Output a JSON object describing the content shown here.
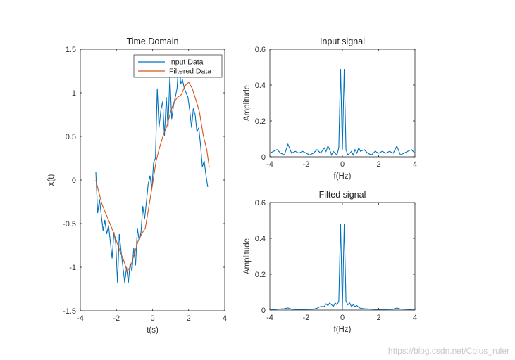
{
  "watermark": "https://blog.csdn.net/Cplus_ruler",
  "colors": {
    "series1": "#0072BD",
    "series2": "#D95319",
    "axis": "#262626"
  },
  "chart_data": [
    {
      "type": "line",
      "title": "Time Domain",
      "xlabel": "t(s)",
      "ylabel": "x(t)",
      "xlim": [
        -4,
        4
      ],
      "ylim": [
        -1.5,
        1.5
      ],
      "xticks": [
        -4,
        -2,
        0,
        2,
        4
      ],
      "yticks": [
        -1.5,
        -1,
        -0.5,
        0,
        0.5,
        1,
        1.5
      ],
      "grid": false,
      "legend": "top-right",
      "series": [
        {
          "name": "Input Data",
          "x": [
            -3.14,
            -3.04,
            -2.94,
            -2.84,
            -2.74,
            -2.64,
            -2.54,
            -2.44,
            -2.34,
            -2.24,
            -2.14,
            -2.04,
            -1.94,
            -1.84,
            -1.74,
            -1.64,
            -1.54,
            -1.44,
            -1.34,
            -1.24,
            -1.14,
            -1.04,
            -0.94,
            -0.84,
            -0.74,
            -0.64,
            -0.54,
            -0.44,
            -0.34,
            -0.24,
            -0.14,
            -0.04,
            0.06,
            0.16,
            0.26,
            0.36,
            0.46,
            0.56,
            0.66,
            0.76,
            0.86,
            0.96,
            1.06,
            1.16,
            1.26,
            1.36,
            1.46,
            1.56,
            1.66,
            1.76,
            1.86,
            1.96,
            2.06,
            2.16,
            2.26,
            2.36,
            2.46,
            2.56,
            2.66,
            2.76,
            2.86,
            2.96,
            3.06
          ],
          "y": [
            0.09,
            -0.38,
            -0.22,
            -0.4,
            -0.58,
            -0.46,
            -0.62,
            -0.52,
            -0.7,
            -0.9,
            -0.6,
            -0.72,
            -1.18,
            -0.62,
            -0.82,
            -1.0,
            -1.18,
            -1.0,
            -1.18,
            -0.95,
            -1.05,
            -0.78,
            -0.98,
            -0.55,
            -0.7,
            -0.6,
            -0.3,
            -0.45,
            -0.25,
            -0.05,
            0.05,
            -0.1,
            0.2,
            0.25,
            1.05,
            0.6,
            0.8,
            0.9,
            0.5,
            0.95,
            0.6,
            1.2,
            0.7,
            0.85,
            0.95,
            1.05,
            1.4,
            1.1,
            1.15,
            1.05,
            1.0,
            0.95,
            0.8,
            0.6,
            0.82,
            0.75,
            0.55,
            0.6,
            0.4,
            0.15,
            0.22,
            0.05,
            -0.08
          ]
        },
        {
          "name": "Filtered Data",
          "x": [
            -3.14,
            -3.0,
            -2.8,
            -2.6,
            -2.4,
            -2.2,
            -2.0,
            -1.8,
            -1.6,
            -1.4,
            -1.2,
            -1.0,
            -0.8,
            -0.6,
            -0.4,
            -0.2,
            0.0,
            0.2,
            0.4,
            0.6,
            0.8,
            1.0,
            1.2,
            1.4,
            1.6,
            1.8,
            2.0,
            2.2,
            2.4,
            2.6,
            2.8,
            3.0,
            3.14
          ],
          "y": [
            0.0,
            -0.12,
            -0.28,
            -0.38,
            -0.48,
            -0.58,
            -0.7,
            -0.82,
            -0.92,
            -1.05,
            -0.98,
            -0.84,
            -0.7,
            -0.62,
            -0.55,
            -0.3,
            -0.05,
            0.22,
            0.38,
            0.52,
            0.62,
            0.78,
            0.9,
            0.95,
            0.98,
            1.08,
            1.12,
            1.05,
            0.92,
            0.78,
            0.52,
            0.35,
            0.15
          ]
        }
      ]
    },
    {
      "type": "line",
      "title": "Input signal",
      "xlabel": "f(Hz)",
      "ylabel": "Amplitude",
      "xlim": [
        -4,
        4
      ],
      "ylim": [
        0,
        0.6
      ],
      "xticks": [
        -4,
        -2,
        0,
        2,
        4
      ],
      "yticks": [
        0,
        0.2,
        0.4,
        0.6
      ],
      "grid": false,
      "series": [
        {
          "x": [
            -4.0,
            -3.8,
            -3.6,
            -3.4,
            -3.2,
            -3.0,
            -2.8,
            -2.6,
            -2.4,
            -2.2,
            -2.0,
            -1.8,
            -1.6,
            -1.4,
            -1.2,
            -1.0,
            -0.9,
            -0.8,
            -0.7,
            -0.6,
            -0.5,
            -0.4,
            -0.3,
            -0.2,
            -0.1,
            0.0,
            0.1,
            0.2,
            0.3,
            0.4,
            0.5,
            0.6,
            0.7,
            0.8,
            0.9,
            1.0,
            1.2,
            1.4,
            1.6,
            1.8,
            2.0,
            2.2,
            2.4,
            2.6,
            2.8,
            3.0,
            3.2,
            3.4,
            3.6,
            3.8,
            4.0
          ],
          "y": [
            0.02,
            0.03,
            0.04,
            0.02,
            0.01,
            0.07,
            0.02,
            0.03,
            0.02,
            0.03,
            0.02,
            0.01,
            0.02,
            0.04,
            0.02,
            0.05,
            0.03,
            0.06,
            0.04,
            0.01,
            0.03,
            0.02,
            0.01,
            0.05,
            0.49,
            0.04,
            0.49,
            0.04,
            0.01,
            0.02,
            0.03,
            0.01,
            0.04,
            0.02,
            0.05,
            0.03,
            0.04,
            0.02,
            0.01,
            0.03,
            0.02,
            0.03,
            0.02,
            0.03,
            0.02,
            0.06,
            0.01,
            0.02,
            0.03,
            0.04,
            0.02
          ]
        }
      ]
    },
    {
      "type": "line",
      "title": "Filted signal",
      "xlabel": "f(Hz)",
      "ylabel": "Amplitude",
      "xlim": [
        -4,
        4
      ],
      "ylim": [
        0,
        0.6
      ],
      "xticks": [
        -4,
        -2,
        0,
        2,
        4
      ],
      "yticks": [
        0,
        0.2,
        0.4,
        0.6
      ],
      "grid": false,
      "series": [
        {
          "x": [
            -4.0,
            -3.6,
            -3.2,
            -3.0,
            -2.8,
            -2.4,
            -2.0,
            -1.6,
            -1.4,
            -1.2,
            -1.0,
            -0.9,
            -0.8,
            -0.7,
            -0.6,
            -0.5,
            -0.4,
            -0.3,
            -0.2,
            -0.1,
            0.0,
            0.1,
            0.2,
            0.3,
            0.4,
            0.5,
            0.6,
            0.7,
            0.8,
            0.9,
            1.0,
            1.2,
            1.6,
            2.0,
            2.4,
            2.8,
            3.0,
            3.2,
            3.6,
            4.0
          ],
          "y": [
            0.0,
            0.005,
            0.008,
            0.012,
            0.005,
            0.003,
            0.004,
            0.005,
            0.01,
            0.02,
            0.02,
            0.035,
            0.025,
            0.04,
            0.03,
            0.02,
            0.04,
            0.03,
            0.05,
            0.48,
            0.01,
            0.48,
            0.05,
            0.03,
            0.04,
            0.02,
            0.03,
            0.02,
            0.025,
            0.015,
            0.01,
            0.008,
            0.005,
            0.003,
            0.004,
            0.005,
            0.012,
            0.006,
            0.004,
            0.0
          ]
        }
      ]
    }
  ]
}
